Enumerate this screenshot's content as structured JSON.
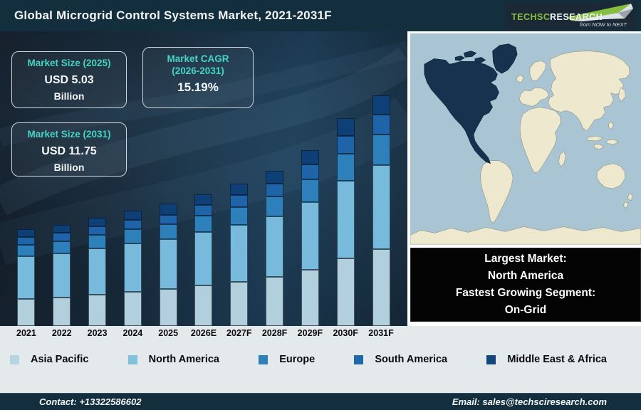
{
  "header": {
    "title": "Global Microgrid Control Systems Market, 2021-2031F"
  },
  "logo": {
    "brand_primary": "TechSci",
    "brand_secondary": "Research",
    "tagline": "from NOW to NEXT",
    "green": "#86bf3e"
  },
  "theme": {
    "header_bg": "#132e3c",
    "footer_bg": "#132e3c",
    "accent_teal": "#45d4c4",
    "band_bg": "#e4e9ec"
  },
  "info_boxes": [
    {
      "label": "Market Size (2025)",
      "value": "USD 5.03",
      "unit": "Billion"
    },
    {
      "label": "Market CAGR",
      "label2": "(2026-2031)",
      "value": "15.19%"
    },
    {
      "label": "Market Size (2031)",
      "value": "USD 11.75",
      "unit": "Billion"
    }
  ],
  "chart_data": {
    "type": "bar",
    "stacked": true,
    "title": "Global Microgrid Control Systems Market, 2021-2031F",
    "xlabel": "",
    "ylabel": "",
    "grid": false,
    "legend_position": "bottom",
    "categories": [
      "2021",
      "2022",
      "2023",
      "2024",
      "2025",
      "2026E",
      "2027F",
      "2028F",
      "2029F",
      "2030F",
      "2031F"
    ],
    "series": [
      {
        "name": "Asia Pacific",
        "color": "#b2cfdd",
        "values": [
          38,
          40,
          44,
          48,
          52,
          57,
          62,
          69,
          79,
          95,
          108
        ]
      },
      {
        "name": "North America",
        "color": "#77badb",
        "values": [
          60,
          62,
          65,
          68,
          70,
          75,
          80,
          85,
          95,
          109,
          118
        ]
      },
      {
        "name": "Europe",
        "color": "#2e80bb",
        "values": [
          16,
          17,
          19,
          20,
          21,
          23,
          25,
          28,
          32,
          38,
          43
        ]
      },
      {
        "name": "South America",
        "color": "#1f63a9",
        "values": [
          11,
          12,
          12,
          13,
          13,
          15,
          17,
          18,
          21,
          25,
          28
        ]
      },
      {
        "name": "Middle East & Africa",
        "color": "#0e4077",
        "values": [
          11,
          11,
          12,
          13,
          16,
          15,
          16,
          18,
          20,
          25,
          27
        ]
      }
    ],
    "value_unit": "relative bar height (px); no numeric y-axis shown in figure",
    "known_points": {
      "market_size_2025_usd_billion": 5.03,
      "market_size_2031_usd_billion": 11.75,
      "cagr_2026_2031_percent": 15.19
    }
  },
  "map": {
    "highlighted_region": "North America",
    "highlight_color": "#16324f",
    "ocean_color": "#a9c4d3",
    "land_color": "#eee8cf"
  },
  "callout_box": {
    "lines": [
      "Largest Market:",
      "North America",
      "Fastest Growing Segment:",
      "On-Grid"
    ]
  },
  "legend": {
    "items": [
      {
        "label": "Asia Pacific",
        "color": "#b7d4e2"
      },
      {
        "label": "North America",
        "color": "#7fc2de"
      },
      {
        "label": "Europe",
        "color": "#2e80bb"
      },
      {
        "label": "South America",
        "color": "#2068ac"
      },
      {
        "label": "Middle East & Africa",
        "color": "#12477e"
      }
    ]
  },
  "footer": {
    "contact": "Contact: +13322586602",
    "email": "Email: sales@techsciresearch.com"
  }
}
